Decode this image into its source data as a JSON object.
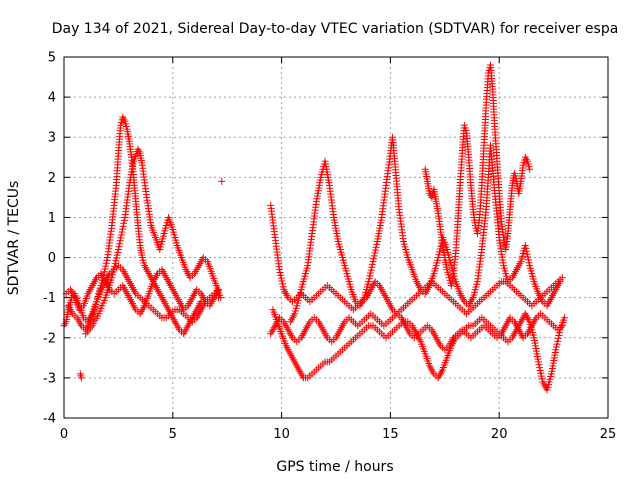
{
  "chart_data": {
    "type": "scatter",
    "title": "Day 134 of 2021, Sidereal Day-to-day VTEC variation (SDTVAR) for receiver espa",
    "xlabel": "GPS time / hours",
    "ylabel": "SDTVAR / TECUs",
    "xlim": [
      0,
      25
    ],
    "ylim": [
      -4,
      5
    ],
    "xticks": [
      0,
      5,
      10,
      15,
      20,
      25
    ],
    "yticks": [
      -4,
      -3,
      -2,
      -1,
      0,
      1,
      2,
      3,
      4,
      5
    ],
    "grid": true,
    "marker": "+",
    "color": "#ff0000",
    "series": [
      {
        "name": "trace-1",
        "x": [
          0.0,
          0.1,
          0.2,
          0.35,
          0.5,
          0.7,
          0.9,
          1.1,
          1.3,
          1.5,
          1.7,
          1.9,
          2.1,
          2.3,
          2.5,
          2.7,
          2.9,
          3.1,
          3.3,
          3.5,
          3.7,
          3.9,
          4.1,
          4.3,
          4.5,
          4.7,
          4.9,
          5.1,
          5.3,
          5.5,
          5.7,
          5.9,
          6.1,
          6.3,
          6.5,
          6.7,
          6.9,
          7.1
        ],
        "y": [
          -1.7,
          -1.6,
          -1.3,
          -1.0,
          -0.9,
          -1.2,
          -1.5,
          -1.6,
          -1.4,
          -1.1,
          -0.8,
          -0.6,
          -0.4,
          -0.3,
          -0.2,
          -0.3,
          -0.5,
          -0.7,
          -0.9,
          -1.0,
          -1.1,
          -1.2,
          -1.3,
          -1.4,
          -1.5,
          -1.5,
          -1.4,
          -1.3,
          -1.3,
          -1.4,
          -1.5,
          -1.6,
          -1.5,
          -1.3,
          -1.1,
          -1.0,
          -0.9,
          -1.0
        ]
      },
      {
        "name": "trace-2",
        "x": [
          0.2,
          0.4,
          0.6,
          0.8,
          1.0,
          1.2,
          1.4,
          1.6,
          1.8,
          2.0,
          2.2,
          2.4,
          2.5,
          2.6,
          2.7,
          2.8,
          2.9,
          3.0,
          3.1,
          3.2,
          3.3,
          3.4,
          3.5,
          3.6,
          3.7,
          3.9,
          4.1,
          4.3,
          4.5,
          4.7,
          4.9,
          5.1,
          5.3,
          5.5,
          5.7,
          5.9,
          6.1,
          6.3
        ],
        "y": [
          -1.2,
          -1.4,
          -1.5,
          -1.7,
          -1.8,
          -1.6,
          -1.3,
          -0.9,
          -0.5,
          0.0,
          0.8,
          1.8,
          2.6,
          3.3,
          3.5,
          3.4,
          3.2,
          2.9,
          2.5,
          2.0,
          1.4,
          0.8,
          0.3,
          0.0,
          -0.2,
          -0.4,
          -0.6,
          -0.8,
          -1.0,
          -1.2,
          -1.4,
          -1.6,
          -1.8,
          -1.9,
          -1.7,
          -1.5,
          -1.3,
          -1.1
        ]
      },
      {
        "name": "trace-3",
        "x": [
          1.0,
          1.3,
          1.6,
          1.9,
          2.2,
          2.5,
          2.8,
          3.0,
          3.2,
          3.4,
          3.5,
          3.6,
          3.8,
          4.0,
          4.2,
          4.4,
          4.6,
          4.8,
          5.0,
          5.2,
          5.4,
          5.6,
          5.8,
          6.0,
          6.2,
          6.4,
          6.6,
          6.8,
          7.0,
          7.2
        ],
        "y": [
          -1.9,
          -1.7,
          -1.4,
          -1.0,
          -0.5,
          0.2,
          1.0,
          1.8,
          2.4,
          2.7,
          2.6,
          2.3,
          1.5,
          0.8,
          0.5,
          0.2,
          0.6,
          1.0,
          0.7,
          0.3,
          0.0,
          -0.3,
          -0.5,
          -0.4,
          -0.2,
          0.0,
          -0.1,
          -0.4,
          -0.7,
          -1.0
        ]
      },
      {
        "name": "trace-4",
        "x": [
          0.1,
          0.3,
          0.5,
          0.7,
          0.9,
          1.1,
          1.3,
          1.5,
          1.7,
          1.9,
          2.1,
          2.3,
          2.5,
          2.7,
          2.9,
          3.1,
          3.3,
          3.5,
          3.7,
          3.9,
          4.1,
          4.3,
          4.5,
          4.7,
          4.9,
          5.1,
          5.3,
          5.5,
          5.7,
          5.9,
          6.1,
          6.3,
          6.5,
          6.7,
          6.9,
          7.1
        ],
        "y": [
          -0.9,
          -0.8,
          -1.0,
          -1.3,
          -1.2,
          -0.9,
          -0.7,
          -0.5,
          -0.4,
          -0.6,
          -0.8,
          -0.9,
          -0.8,
          -0.7,
          -0.9,
          -1.1,
          -1.3,
          -1.4,
          -1.2,
          -0.9,
          -0.6,
          -0.4,
          -0.3,
          -0.5,
          -0.7,
          -0.9,
          -1.1,
          -1.3,
          -1.2,
          -1.0,
          -0.8,
          -0.9,
          -1.1,
          -1.2,
          -1.0,
          -0.8
        ]
      },
      {
        "name": "trace-5",
        "x": [
          0.75,
          0.8
        ],
        "y": [
          -2.9,
          -3.0
        ]
      },
      {
        "name": "trace-6",
        "x": [
          7.25
        ],
        "y": [
          1.9
        ]
      },
      {
        "name": "trace-7",
        "x": [
          9.6,
          9.8,
          10.0,
          10.2,
          10.4,
          10.6,
          10.8,
          11.0,
          11.2,
          11.4,
          11.6,
          11.8,
          12.0,
          12.2,
          12.4,
          12.6,
          12.8,
          13.0,
          13.2,
          13.4,
          13.6,
          13.8,
          14.0,
          14.2,
          14.4,
          14.6,
          14.8,
          15.0,
          15.2,
          15.4,
          15.6,
          15.8,
          16.0,
          16.2,
          16.4,
          16.6,
          16.8,
          17.0,
          17.2,
          17.4,
          17.6,
          17.8,
          18.0,
          18.2,
          18.4,
          18.6,
          18.8,
          19.0,
          19.2,
          19.4,
          19.6,
          19.8,
          20.0,
          20.2,
          20.4,
          20.6,
          20.8,
          21.0,
          21.2,
          21.4,
          21.6,
          21.8,
          22.0,
          22.2,
          22.4,
          22.6,
          22.8,
          23.0
        ],
        "y": [
          -1.3,
          -1.6,
          -1.9,
          -2.2,
          -2.4,
          -2.6,
          -2.8,
          -3.0,
          -3.0,
          -2.9,
          -2.8,
          -2.7,
          -2.6,
          -2.6,
          -2.5,
          -2.4,
          -2.3,
          -2.2,
          -2.1,
          -2.0,
          -1.9,
          -1.8,
          -1.7,
          -1.7,
          -1.8,
          -1.9,
          -2.0,
          -1.9,
          -1.8,
          -1.7,
          -1.6,
          -1.6,
          -1.7,
          -1.9,
          -2.1,
          -2.4,
          -2.7,
          -2.9,
          -3.0,
          -2.8,
          -2.5,
          -2.2,
          -2.0,
          -1.9,
          -1.8,
          -1.7,
          -1.7,
          -1.6,
          -1.5,
          -1.6,
          -1.7,
          -1.8,
          -1.9,
          -2.0,
          -2.1,
          -2.0,
          -1.8,
          -1.6,
          -1.4,
          -1.6,
          -2.0,
          -2.6,
          -3.1,
          -3.3,
          -2.9,
          -2.3,
          -1.8,
          -1.5
        ]
      },
      {
        "name": "trace-8",
        "x": [
          9.5,
          9.7,
          9.9,
          10.1,
          10.3,
          10.5,
          10.7,
          10.9,
          11.1,
          11.3,
          11.5,
          11.7,
          11.9,
          12.1,
          12.3,
          12.5,
          12.7,
          12.9,
          13.1,
          13.3,
          13.5,
          13.7,
          13.9,
          14.1,
          14.3,
          14.5,
          14.7,
          14.9,
          15.1,
          15.3,
          15.5,
          15.7,
          15.9,
          16.1,
          16.3,
          16.5,
          16.7,
          16.9,
          17.1,
          17.3,
          17.5,
          17.7,
          17.9,
          18.1,
          18.3,
          18.5,
          18.7,
          18.9,
          19.1,
          19.3,
          19.5,
          19.7,
          19.9,
          20.1,
          20.3,
          20.5,
          20.7,
          20.9,
          21.1,
          21.3,
          21.5,
          21.7,
          21.9,
          22.1,
          22.3,
          22.5,
          22.7,
          22.9
        ],
        "y": [
          -1.9,
          -1.7,
          -1.5,
          -1.6,
          -1.8,
          -2.0,
          -2.1,
          -2.0,
          -1.8,
          -1.6,
          -1.5,
          -1.6,
          -1.8,
          -2.0,
          -2.1,
          -2.0,
          -1.8,
          -1.6,
          -1.5,
          -1.6,
          -1.7,
          -1.6,
          -1.5,
          -1.4,
          -1.5,
          -1.6,
          -1.7,
          -1.6,
          -1.5,
          -1.4,
          -1.5,
          -1.7,
          -1.9,
          -2.0,
          -1.9,
          -1.8,
          -1.7,
          -1.8,
          -2.0,
          -2.2,
          -2.3,
          -2.2,
          -2.0,
          -1.9,
          -1.8,
          -1.9,
          -2.0,
          -1.9,
          -1.8,
          -1.7,
          -1.8,
          -1.9,
          -2.0,
          -1.9,
          -1.7,
          -1.5,
          -1.6,
          -1.8,
          -2.0,
          -1.9,
          -1.7,
          -1.5,
          -1.4,
          -1.5,
          -1.6,
          -1.7,
          -1.8,
          -1.7
        ]
      },
      {
        "name": "trace-9",
        "x": [
          9.5,
          9.7,
          9.9,
          10.1,
          10.3,
          10.5,
          10.7,
          10.9,
          11.1,
          11.3,
          11.5,
          11.7,
          11.9,
          12.1,
          12.3,
          12.5,
          12.7,
          12.9,
          13.1,
          13.3,
          13.5,
          13.7,
          13.9,
          14.1,
          14.3,
          14.5,
          14.7,
          14.9,
          15.1,
          15.3,
          15.5,
          15.7,
          15.9,
          16.1,
          16.3,
          16.5,
          16.7,
          16.9,
          17.1,
          17.3,
          17.5,
          17.7,
          17.9,
          18.1,
          18.3,
          18.5,
          18.7,
          18.9,
          19.1,
          19.3,
          19.5,
          19.7,
          19.9,
          20.1,
          20.3,
          20.5,
          20.7,
          20.9,
          21.1,
          21.3,
          21.5,
          21.7,
          21.9,
          22.1,
          22.3,
          22.5,
          22.7,
          22.9
        ],
        "y": [
          1.3,
          0.5,
          -0.3,
          -0.8,
          -1.0,
          -1.1,
          -1.0,
          -0.9,
          -1.0,
          -1.1,
          -1.0,
          -0.9,
          -0.8,
          -0.7,
          -0.8,
          -0.9,
          -1.0,
          -1.1,
          -1.2,
          -1.3,
          -1.2,
          -1.1,
          -1.0,
          -0.8,
          -0.6,
          -0.7,
          -0.9,
          -1.1,
          -1.3,
          -1.4,
          -1.3,
          -1.2,
          -1.1,
          -1.0,
          -0.9,
          -0.8,
          -0.7,
          -0.6,
          -0.7,
          -0.8,
          -0.9,
          -1.0,
          -1.1,
          -1.2,
          -1.3,
          -1.4,
          -1.3,
          -1.2,
          -1.1,
          -1.0,
          -0.9,
          -0.8,
          -0.7,
          -0.6,
          -0.6,
          -0.7,
          -0.8,
          -0.9,
          -1.0,
          -1.1,
          -1.2,
          -1.1,
          -1.0,
          -0.9,
          -0.8,
          -0.7,
          -0.6,
          -0.5
        ]
      },
      {
        "name": "trace-10",
        "x": [
          10.4,
          10.6,
          10.8,
          11.0,
          11.2,
          11.4,
          11.6,
          11.8,
          12.0,
          12.2,
          12.4,
          12.6,
          12.8,
          13.0,
          13.2,
          13.4,
          13.6,
          13.8,
          14.0,
          14.2,
          14.4,
          14.6,
          14.8,
          15.0,
          15.1,
          15.2,
          15.4,
          15.6,
          15.8,
          16.0,
          16.2,
          16.4,
          16.6,
          16.8,
          17.0,
          17.2,
          17.4,
          17.6,
          17.8,
          18.0,
          18.2,
          18.4,
          18.6,
          18.8,
          19.0,
          19.2,
          19.4,
          19.5,
          19.6,
          19.8,
          20.0,
          20.2,
          20.4,
          20.6,
          20.8,
          21.0,
          21.2,
          21.4,
          21.6,
          21.8,
          22.0,
          22.2,
          22.4,
          22.6,
          22.8
        ],
        "y": [
          -1.6,
          -1.4,
          -1.0,
          -0.6,
          -0.2,
          0.6,
          1.4,
          2.0,
          2.4,
          1.8,
          1.0,
          0.4,
          0.0,
          -0.4,
          -0.8,
          -1.1,
          -1.2,
          -1.0,
          -0.6,
          -0.1,
          0.4,
          1.0,
          1.8,
          2.6,
          3.0,
          2.4,
          1.2,
          0.4,
          0.0,
          -0.3,
          -0.6,
          -0.8,
          -0.9,
          -0.7,
          -0.4,
          0.0,
          0.5,
          0.2,
          -0.2,
          -0.6,
          -0.9,
          -1.1,
          -1.2,
          -1.0,
          -0.6,
          0.2,
          1.2,
          2.0,
          2.8,
          1.6,
          0.5,
          -0.2,
          -0.6,
          -0.5,
          -0.3,
          -0.1,
          0.3,
          -0.2,
          -0.6,
          -0.9,
          -1.1,
          -1.2,
          -1.0,
          -0.8,
          -0.6
        ]
      },
      {
        "name": "trace-11",
        "x": [
          16.6,
          16.7,
          16.8,
          16.9,
          17.0,
          17.1,
          17.2,
          17.3,
          17.4,
          17.5,
          17.6,
          17.7,
          17.8,
          17.9,
          18.0,
          18.1,
          18.2,
          18.3,
          18.4,
          18.5,
          18.6,
          18.7,
          18.8,
          18.9,
          19.0,
          19.1,
          19.2,
          19.3,
          19.4,
          19.5,
          19.6,
          19.7,
          19.8,
          19.9,
          20.0,
          20.1,
          20.2,
          20.3,
          20.4,
          20.5,
          20.6,
          20.7,
          20.8,
          20.9,
          21.0,
          21.1,
          21.2,
          21.3,
          21.4
        ],
        "y": [
          2.2,
          1.9,
          1.6,
          1.5,
          1.7,
          1.4,
          1.1,
          0.7,
          0.3,
          0.0,
          -0.3,
          -0.5,
          -0.7,
          -0.4,
          0.1,
          0.9,
          1.8,
          2.6,
          3.3,
          3.1,
          2.5,
          1.8,
          1.2,
          0.8,
          0.6,
          1.0,
          1.8,
          2.8,
          3.8,
          4.6,
          4.8,
          4.2,
          3.2,
          2.4,
          1.6,
          0.9,
          0.5,
          0.2,
          0.6,
          1.2,
          1.8,
          2.1,
          1.9,
          1.6,
          1.9,
          2.3,
          2.5,
          2.4,
          2.2
        ]
      }
    ]
  }
}
